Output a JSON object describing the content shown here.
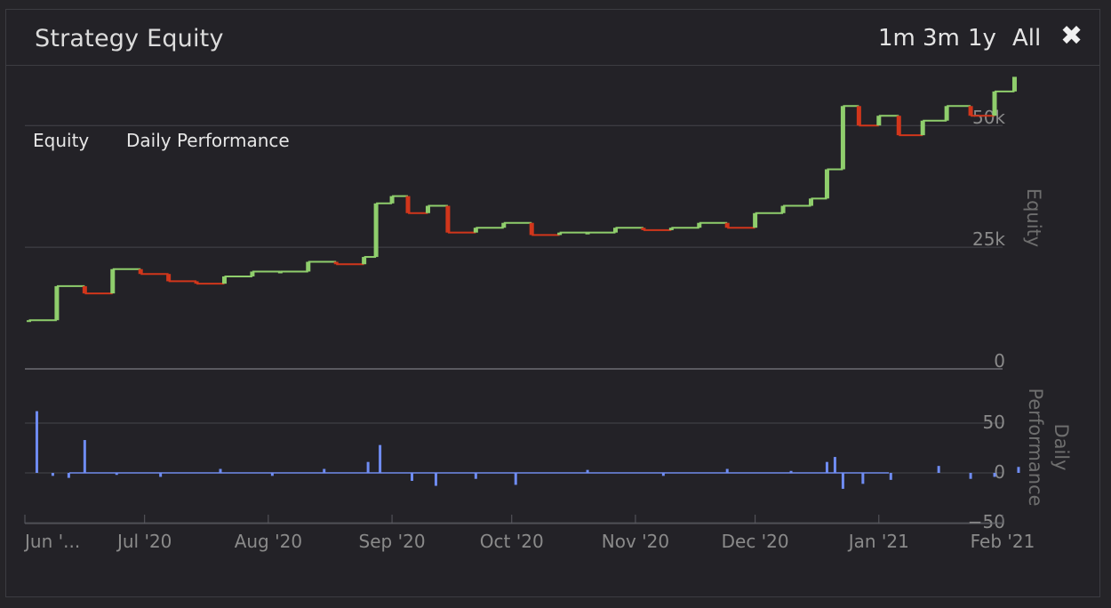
{
  "header": {
    "title": "Strategy Equity",
    "zoom_buttons": [
      "1m",
      "3m",
      "1y",
      "All"
    ],
    "close_glyph": "✖"
  },
  "legend": [
    "Equity",
    "Daily Performance"
  ],
  "colors": {
    "up": "#8fce6c",
    "down": "#d1361b",
    "bar": "#6f8cf2",
    "grid": "#45454b",
    "text": "#8a8a8a"
  },
  "chart_data": [
    {
      "type": "candlestick",
      "ylabel": "Equity",
      "ylim": [
        0,
        63000
      ],
      "yticks": [
        0,
        25000,
        50000
      ],
      "ytick_labels": [
        "0",
        "25k",
        "50k"
      ],
      "x_tick_labels": [
        "Jun '...",
        "Jul '20",
        "Aug '20",
        "Sep '20",
        "Oct '20",
        "Nov '20",
        "Dec '20",
        "Jan '21",
        "Feb '21"
      ],
      "x_start": "2020-06-01",
      "x_end": "2021-02-01",
      "series": [
        {
          "date": "2020-06-02",
          "value": 10000
        },
        {
          "date": "2020-06-09",
          "value": 17000
        },
        {
          "date": "2020-06-16",
          "value": 15500
        },
        {
          "date": "2020-06-23",
          "value": 20500
        },
        {
          "date": "2020-06-30",
          "value": 19500
        },
        {
          "date": "2020-07-07",
          "value": 18000
        },
        {
          "date": "2020-07-14",
          "value": 17500
        },
        {
          "date": "2020-07-21",
          "value": 19000
        },
        {
          "date": "2020-07-28",
          "value": 20000
        },
        {
          "date": "2020-08-04",
          "value": 20000
        },
        {
          "date": "2020-08-11",
          "value": 22000
        },
        {
          "date": "2020-08-18",
          "value": 21500
        },
        {
          "date": "2020-08-25",
          "value": 23000
        },
        {
          "date": "2020-08-28",
          "value": 34000
        },
        {
          "date": "2020-09-01",
          "value": 35500
        },
        {
          "date": "2020-09-05",
          "value": 32000
        },
        {
          "date": "2020-09-10",
          "value": 33500
        },
        {
          "date": "2020-09-15",
          "value": 28000
        },
        {
          "date": "2020-09-22",
          "value": 29000
        },
        {
          "date": "2020-09-29",
          "value": 30000
        },
        {
          "date": "2020-10-06",
          "value": 27500
        },
        {
          "date": "2020-10-13",
          "value": 28000
        },
        {
          "date": "2020-10-20",
          "value": 28000
        },
        {
          "date": "2020-10-27",
          "value": 29000
        },
        {
          "date": "2020-11-03",
          "value": 28500
        },
        {
          "date": "2020-11-10",
          "value": 29000
        },
        {
          "date": "2020-11-17",
          "value": 30000
        },
        {
          "date": "2020-11-24",
          "value": 29000
        },
        {
          "date": "2020-12-01",
          "value": 32000
        },
        {
          "date": "2020-12-08",
          "value": 33500
        },
        {
          "date": "2020-12-15",
          "value": 35000
        },
        {
          "date": "2020-12-19",
          "value": 41000
        },
        {
          "date": "2020-12-23",
          "value": 54000
        },
        {
          "date": "2020-12-27",
          "value": 50000
        },
        {
          "date": "2021-01-01",
          "value": 52000
        },
        {
          "date": "2021-01-06",
          "value": 48000
        },
        {
          "date": "2021-01-12",
          "value": 51000
        },
        {
          "date": "2021-01-18",
          "value": 54000
        },
        {
          "date": "2021-01-24",
          "value": 52000
        },
        {
          "date": "2021-01-30",
          "value": 57000
        },
        {
          "date": "2021-02-04",
          "value": 60000
        }
      ]
    },
    {
      "type": "bar",
      "ylabel": "Daily Performance",
      "ylim": [
        -50,
        60
      ],
      "yticks": [
        -50,
        0,
        50
      ],
      "ytick_labels": [
        "−50",
        "0",
        "50"
      ],
      "series": [
        {
          "date": "2020-06-04",
          "value": 62
        },
        {
          "date": "2020-06-08",
          "value": -3
        },
        {
          "date": "2020-06-12",
          "value": -5
        },
        {
          "date": "2020-06-16",
          "value": 33
        },
        {
          "date": "2020-06-24",
          "value": -2
        },
        {
          "date": "2020-07-05",
          "value": -4
        },
        {
          "date": "2020-07-20",
          "value": 4
        },
        {
          "date": "2020-08-02",
          "value": -3
        },
        {
          "date": "2020-08-15",
          "value": 4
        },
        {
          "date": "2020-08-26",
          "value": 11
        },
        {
          "date": "2020-08-29",
          "value": 28
        },
        {
          "date": "2020-09-06",
          "value": -8
        },
        {
          "date": "2020-09-12",
          "value": -13
        },
        {
          "date": "2020-09-22",
          "value": -6
        },
        {
          "date": "2020-10-02",
          "value": -12
        },
        {
          "date": "2020-10-20",
          "value": 3
        },
        {
          "date": "2020-11-08",
          "value": -3
        },
        {
          "date": "2020-11-24",
          "value": 4
        },
        {
          "date": "2020-12-10",
          "value": 2
        },
        {
          "date": "2020-12-19",
          "value": 11
        },
        {
          "date": "2020-12-21",
          "value": 16
        },
        {
          "date": "2020-12-23",
          "value": -16
        },
        {
          "date": "2020-12-28",
          "value": -11
        },
        {
          "date": "2021-01-04",
          "value": -7
        },
        {
          "date": "2021-01-16",
          "value": 7
        },
        {
          "date": "2021-01-24",
          "value": -6
        },
        {
          "date": "2021-01-30",
          "value": -4
        },
        {
          "date": "2021-02-05",
          "value": 6
        }
      ]
    }
  ]
}
